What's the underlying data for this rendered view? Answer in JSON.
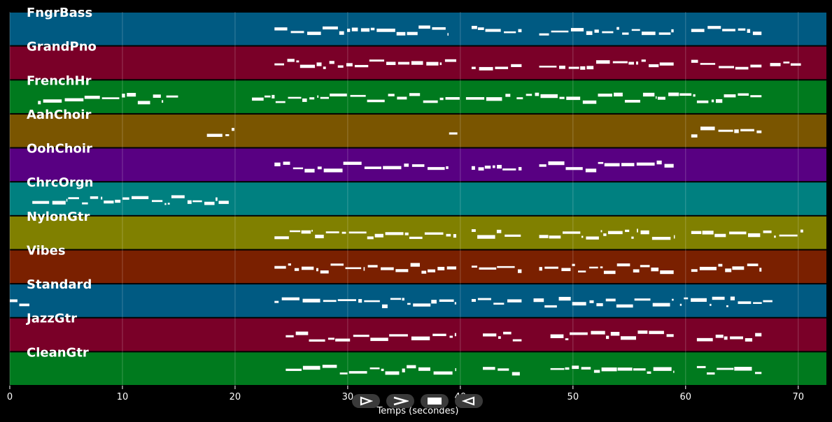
{
  "chart_data": {
    "type": "piano-roll",
    "xlabel": "Temps (secondes)",
    "xlim": [
      0,
      72.5
    ],
    "xticks": [
      0,
      10,
      20,
      30,
      40,
      50,
      60,
      70
    ],
    "grid": true,
    "tracks": [
      {
        "name": "FngrBass",
        "color": "#005a82",
        "segments": [
          [
            23.5,
            39
          ],
          [
            41,
            45.5
          ],
          [
            47,
            59
          ],
          [
            60.5,
            66.8
          ]
        ]
      },
      {
        "name": "GrandPno",
        "color": "#7a0028",
        "segments": [
          [
            23.5,
            39.7
          ],
          [
            41,
            45.5
          ],
          [
            47,
            59
          ],
          [
            60.5,
            66.8
          ],
          [
            67.5,
            70.3
          ]
        ]
      },
      {
        "name": "FrenchHr",
        "color": "#007a1e",
        "segments": [
          [
            2.5,
            15
          ],
          [
            21.5,
            40
          ],
          [
            40.5,
            44.5
          ],
          [
            45,
            61
          ],
          [
            61,
            66.8
          ]
        ]
      },
      {
        "name": "AahChoir",
        "color": "#7a5500",
        "segments": [
          [
            17.5,
            20
          ],
          [
            39,
            39.8
          ],
          [
            60.5,
            66.8
          ]
        ]
      },
      {
        "name": "OohChoir",
        "color": "#580082",
        "segments": [
          [
            23.5,
            39
          ],
          [
            41,
            45.5
          ],
          [
            47,
            59
          ]
        ]
      },
      {
        "name": "ChrcOrgn",
        "color": "#008080",
        "segments": [
          [
            2,
            19.5
          ]
        ]
      },
      {
        "name": "NylonGtr",
        "color": "#808000",
        "segments": [
          [
            23.5,
            39.7
          ],
          [
            41,
            45.5
          ],
          [
            47,
            59
          ],
          [
            60.5,
            70.5
          ]
        ]
      },
      {
        "name": "Vibes",
        "color": "#7a2000",
        "segments": [
          [
            23.5,
            39.7
          ],
          [
            41,
            45.5
          ],
          [
            47,
            59
          ],
          [
            60.5,
            66.8
          ]
        ]
      },
      {
        "name": "Standard",
        "color": "#005a82",
        "segments": [
          [
            0,
            1.8
          ],
          [
            23.5,
            39.7
          ],
          [
            41,
            45.5
          ],
          [
            46.5,
            59
          ],
          [
            59.5,
            67.8
          ]
        ]
      },
      {
        "name": "JazzGtr",
        "color": "#7a0028",
        "segments": [
          [
            24.5,
            39.7
          ],
          [
            42,
            45.5
          ],
          [
            48,
            59
          ],
          [
            61,
            66.8
          ]
        ]
      },
      {
        "name": "CleanGtr",
        "color": "#007a1e",
        "segments": [
          [
            24.5,
            39.7
          ],
          [
            42,
            45.5
          ],
          [
            48,
            59
          ],
          [
            61,
            66.8
          ]
        ]
      }
    ]
  },
  "transport": {
    "buttons": [
      {
        "name": "play-icon"
      },
      {
        "name": "forward-icon"
      },
      {
        "name": "stop-icon"
      },
      {
        "name": "back-icon"
      }
    ]
  }
}
